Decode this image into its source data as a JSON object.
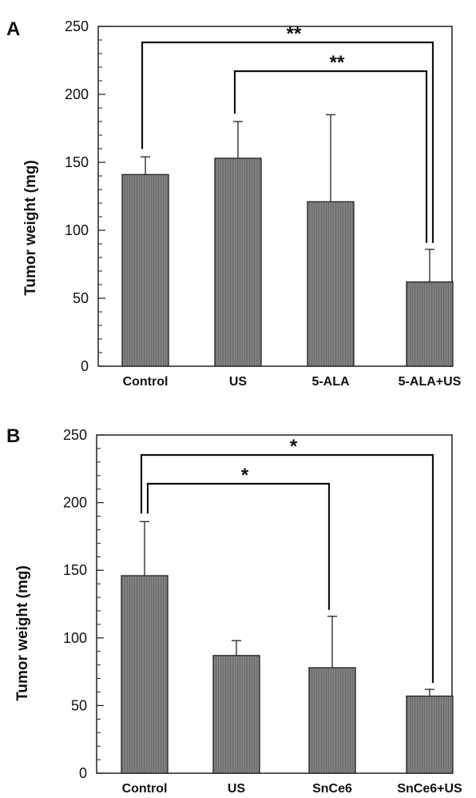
{
  "chart_data": [
    {
      "panel": "A",
      "type": "bar",
      "categories": [
        "Control",
        "US",
        "5-ALA",
        "5-ALA+US"
      ],
      "values": [
        141,
        153,
        121,
        62
      ],
      "errors": [
        13,
        27,
        64,
        24
      ],
      "ylabel": "Tumor  weight (mg)",
      "ylim": [
        0,
        250
      ],
      "yticks": [
        0,
        50,
        100,
        150,
        200,
        250
      ],
      "bar_color": "#7b7b7b",
      "significance": [
        {
          "from": 0,
          "to": 3,
          "label": "**"
        },
        {
          "from": 1,
          "to": 3,
          "label": "**"
        }
      ]
    },
    {
      "panel": "B",
      "type": "bar",
      "categories": [
        "Control",
        "US",
        "SnCe6",
        "SnCe6+US"
      ],
      "values": [
        146,
        87,
        78,
        57
      ],
      "errors": [
        40,
        11,
        38,
        5
      ],
      "ylabel": "Tumor  weight (mg)",
      "ylim": [
        0,
        250
      ],
      "yticks": [
        0,
        50,
        100,
        150,
        200,
        250
      ],
      "bar_color": "#7b7b7b",
      "significance": [
        {
          "from": 0,
          "to": 3,
          "label": "*"
        },
        {
          "from": 0,
          "to": 2,
          "label": "*"
        }
      ]
    }
  ]
}
